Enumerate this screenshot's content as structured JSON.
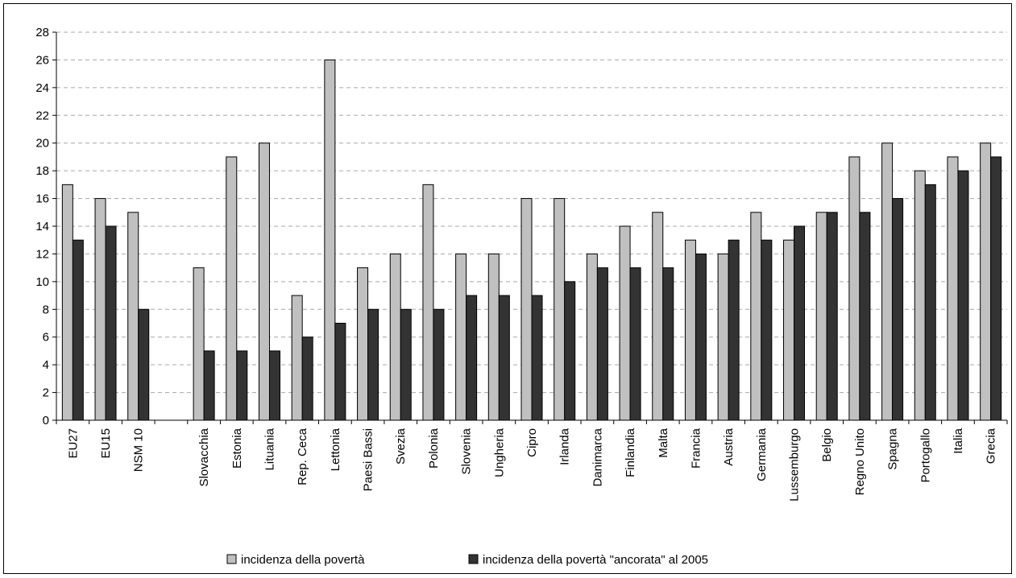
{
  "chart_data": {
    "type": "bar",
    "title": "",
    "xlabel": "",
    "ylabel": "",
    "ylim": [
      0,
      28
    ],
    "yticks": [
      0,
      2,
      4,
      6,
      8,
      10,
      12,
      14,
      16,
      18,
      20,
      22,
      24,
      26,
      28
    ],
    "grid": "horizontal dashed",
    "legend_position": "bottom",
    "categories": [
      "EU27",
      "EU15",
      "NSM 10",
      "",
      "Slovacchia",
      "Estonia",
      "Lituania",
      "Rep. Ceca",
      "Lettonia",
      "Paesi Bassi",
      "Svezia",
      "Polonia",
      "Slovenia",
      "Ungheria",
      "Cipro",
      "Irlanda",
      "Danimarca",
      "Finlandia",
      "Malta",
      "Francia",
      "Austria",
      "Germania",
      "Lussemburgo",
      "Belgio",
      "Regno Unito",
      "Spagna",
      "Portogallo",
      "Italia",
      "Grecia"
    ],
    "series": [
      {
        "name": "incidenza della povertà",
        "color": "#c0c0c0",
        "values": [
          17,
          16,
          15,
          null,
          11,
          19,
          20,
          9,
          26,
          11,
          12,
          17,
          12,
          12,
          16,
          16,
          12,
          14,
          15,
          13,
          12,
          15,
          13,
          15,
          19,
          20,
          18,
          19,
          20
        ]
      },
      {
        "name": "incidenza della povertà \"ancorata\" al 2005",
        "color": "#333333",
        "values": [
          13,
          14,
          8,
          null,
          5,
          5,
          5,
          6,
          7,
          8,
          8,
          8,
          9,
          9,
          9,
          10,
          11,
          11,
          11,
          12,
          13,
          13,
          14,
          15,
          15,
          16,
          17,
          18,
          19
        ]
      }
    ]
  }
}
